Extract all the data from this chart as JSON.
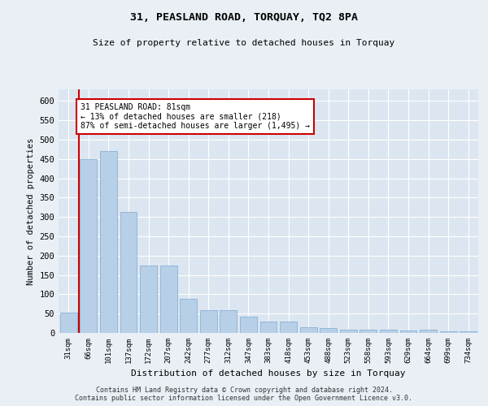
{
  "title1": "31, PEASLAND ROAD, TORQUAY, TQ2 8PA",
  "title2": "Size of property relative to detached houses in Torquay",
  "xlabel": "Distribution of detached houses by size in Torquay",
  "ylabel": "Number of detached properties",
  "categories": [
    "31sqm",
    "66sqm",
    "101sqm",
    "137sqm",
    "172sqm",
    "207sqm",
    "242sqm",
    "277sqm",
    "312sqm",
    "347sqm",
    "383sqm",
    "418sqm",
    "453sqm",
    "488sqm",
    "523sqm",
    "558sqm",
    "593sqm",
    "629sqm",
    "664sqm",
    "699sqm",
    "734sqm"
  ],
  "values": [
    53,
    450,
    470,
    312,
    175,
    175,
    88,
    58,
    58,
    43,
    30,
    30,
    15,
    12,
    8,
    8,
    8,
    7,
    8,
    4,
    4
  ],
  "bar_color": "#b8cfe8",
  "bar_edgecolor": "#7aaad0",
  "annotation_text": "31 PEASLAND ROAD: 81sqm\n← 13% of detached houses are smaller (218)\n87% of semi-detached houses are larger (1,495) →",
  "annotation_box_color": "#ffffff",
  "annotation_box_edgecolor": "#cc0000",
  "vline_color": "#cc0000",
  "ylim": [
    0,
    630
  ],
  "yticks": [
    0,
    50,
    100,
    150,
    200,
    250,
    300,
    350,
    400,
    450,
    500,
    550,
    600
  ],
  "footer1": "Contains HM Land Registry data © Crown copyright and database right 2024.",
  "footer2": "Contains public sector information licensed under the Open Government Licence v3.0.",
  "background_color": "#eaeff6",
  "plot_background": "#dce6f0"
}
